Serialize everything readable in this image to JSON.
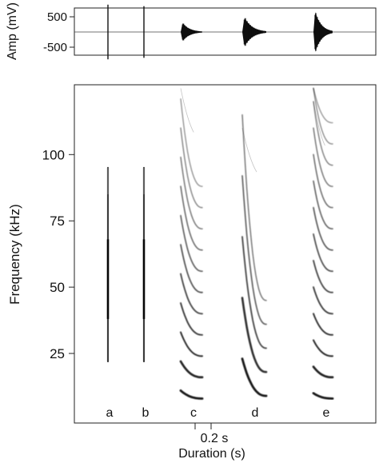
{
  "figure": {
    "duration_label": "0.2 s",
    "scale_bar_seconds": 0.2
  },
  "chart_data": [
    {
      "type": "line",
      "panel": "oscillogram",
      "ylabel": "Amp (mV)",
      "yticks": [
        500,
        -500
      ],
      "xlabel": "",
      "grid": false,
      "bursts": [
        {
          "call": "a",
          "peak_amplitude_mv": 900,
          "duration_s": 0.005
        },
        {
          "call": "b",
          "peak_amplitude_mv": 850,
          "duration_s": 0.005
        },
        {
          "call": "c",
          "peak_amplitude_mv": 400,
          "duration_s": 0.06
        },
        {
          "call": "d",
          "peak_amplitude_mv": 650,
          "duration_s": 0.06
        },
        {
          "call": "e",
          "peak_amplitude_mv": 900,
          "duration_s": 0.055
        }
      ]
    },
    {
      "type": "scatter",
      "panel": "spectrogram",
      "xlabel": "Duration (s)",
      "ylabel": "Frequency (kHz)",
      "yticks": [
        25,
        50,
        75,
        100
      ],
      "ylim": [
        4,
        126
      ],
      "grid": false,
      "calls": [
        {
          "label": "a",
          "kind": "click",
          "freq_range_khz": [
            22,
            95
          ]
        },
        {
          "label": "b",
          "kind": "click",
          "freq_range_khz": [
            22,
            95
          ]
        },
        {
          "label": "c",
          "kind": "harmonic",
          "fundamental_khz": [
            11,
            8
          ],
          "harmonics": [
            1,
            2,
            3,
            4,
            5,
            6,
            7,
            8,
            9,
            10,
            11
          ],
          "upper_faint_khz": 125
        },
        {
          "label": "d",
          "kind": "harmonic",
          "fundamental_khz": [
            23,
            9
          ],
          "harmonics": [
            1,
            2,
            3,
            4,
            5
          ],
          "upper_faint_khz": 110
        },
        {
          "label": "e",
          "kind": "harmonic",
          "fundamental_khz": [
            10,
            8
          ],
          "harmonics": [
            1,
            2,
            3,
            4,
            5,
            6,
            7,
            8,
            9,
            10,
            11,
            12,
            13,
            14
          ],
          "upper_faint_khz": 120
        }
      ]
    }
  ]
}
